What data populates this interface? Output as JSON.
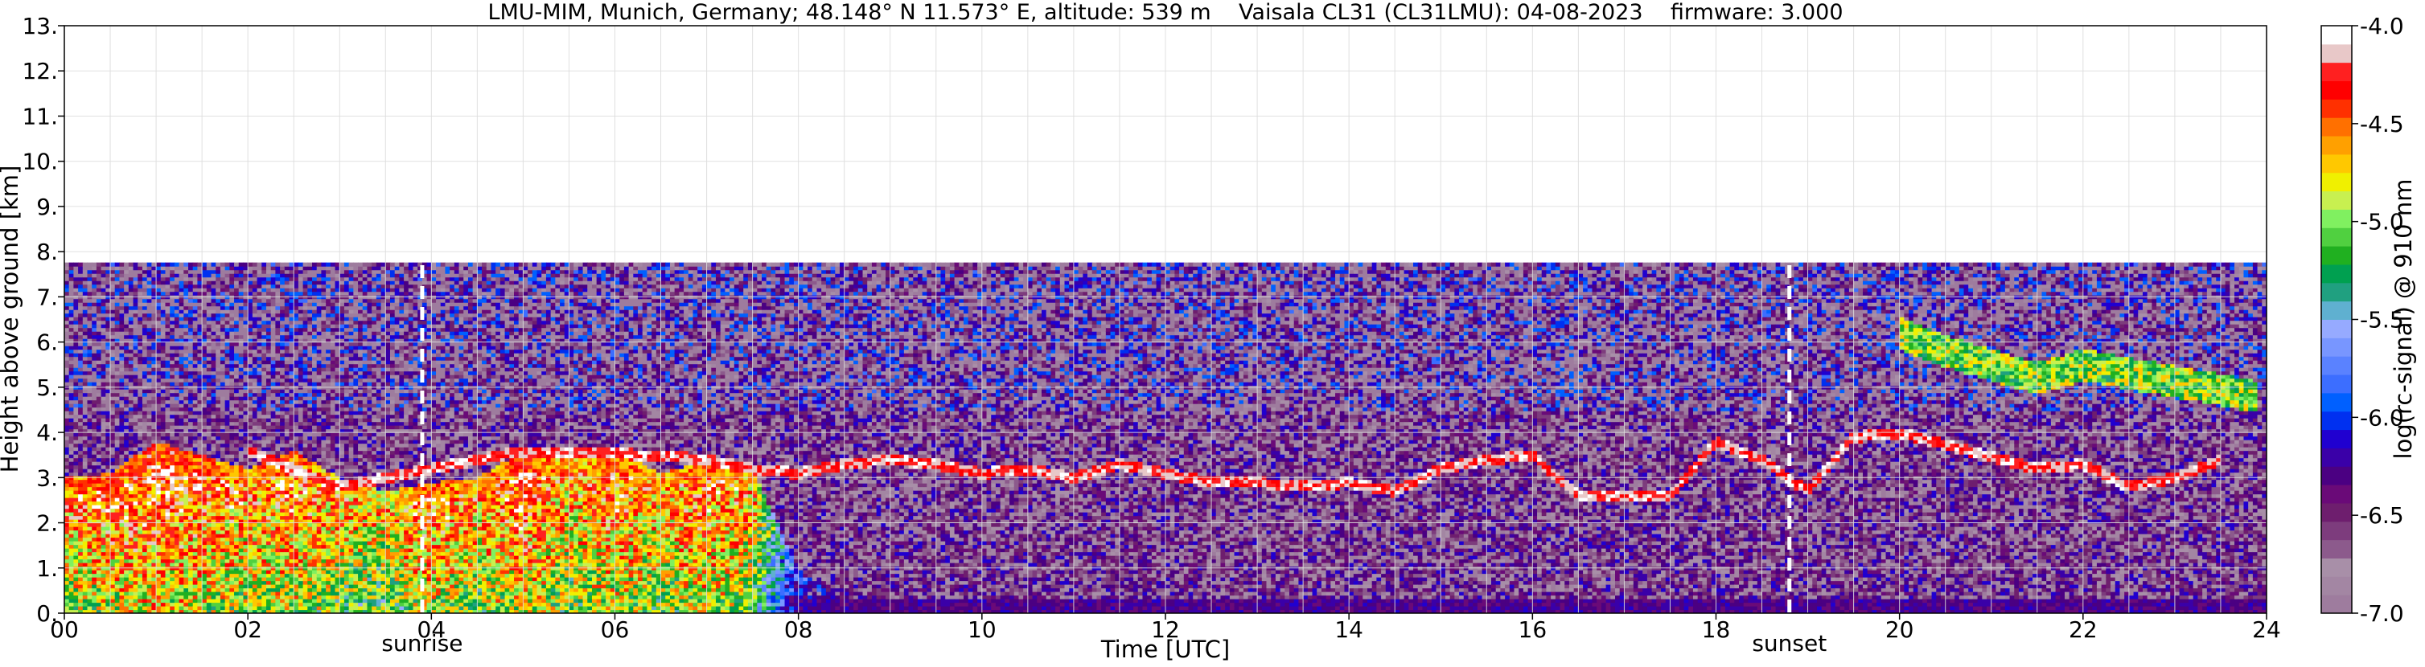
{
  "chart_data": {
    "type": "heatmap",
    "title": "LMU-MIM, Munich, Germany; 48.148° N 11.573° E, altitude: 539 m    Vaisala CL31 (CL31LMU): 04-08-2023    firmware: 3.000",
    "xlabel": "Time [UTC]",
    "ylabel": "Height above ground [km]",
    "xlim": [
      0,
      24
    ],
    "ylim": [
      0,
      13
    ],
    "x_ticks": [
      {
        "value": 0,
        "label": "00"
      },
      {
        "value": 2,
        "label": "02"
      },
      {
        "value": 4,
        "label": "04"
      },
      {
        "value": 6,
        "label": "06"
      },
      {
        "value": 8,
        "label": "08"
      },
      {
        "value": 10,
        "label": "10"
      },
      {
        "value": 12,
        "label": "12"
      },
      {
        "value": 14,
        "label": "14"
      },
      {
        "value": 16,
        "label": "16"
      },
      {
        "value": 18,
        "label": "18"
      },
      {
        "value": 20,
        "label": "20"
      },
      {
        "value": 22,
        "label": "22"
      },
      {
        "value": 24,
        "label": "24"
      }
    ],
    "y_ticks": [
      {
        "value": 0,
        "label": "0."
      },
      {
        "value": 1,
        "label": "1."
      },
      {
        "value": 2,
        "label": "2."
      },
      {
        "value": 3,
        "label": "3."
      },
      {
        "value": 4,
        "label": "4."
      },
      {
        "value": 5,
        "label": "5."
      },
      {
        "value": 6,
        "label": "6."
      },
      {
        "value": 7,
        "label": "7."
      },
      {
        "value": 8,
        "label": "8."
      },
      {
        "value": 9,
        "label": "9."
      },
      {
        "value": 10,
        "label": "10."
      },
      {
        "value": 11,
        "label": "11."
      },
      {
        "value": 12,
        "label": "12."
      },
      {
        "value": 13,
        "label": "13."
      }
    ],
    "annotations": [
      {
        "label": "sunrise",
        "x": 3.9
      },
      {
        "label": "sunset",
        "x": 18.8
      }
    ],
    "grid": true,
    "data_top_km": 7.7,
    "colorbar": {
      "label": "log(rc-signal) @ 910 nm",
      "range": [
        -7.0,
        -4.0
      ],
      "ticks": [
        {
          "value": -7.0,
          "label": "-7.0"
        },
        {
          "value": -6.5,
          "label": "-6.5"
        },
        {
          "value": -6.0,
          "label": "-6.0"
        },
        {
          "value": -5.5,
          "label": "-5.5"
        },
        {
          "value": -5.0,
          "label": "-5.0"
        },
        {
          "value": -4.5,
          "label": "-4.5"
        },
        {
          "value": -4.0,
          "label": "-4.0"
        }
      ],
      "colors": [
        "#9e7c9e",
        "#a386a3",
        "#a88fa8",
        "#8c5a8c",
        "#7d3c7d",
        "#6e1e6e",
        "#6a0a78",
        "#4b0082",
        "#3a00a8",
        "#2000d0",
        "#0030f0",
        "#0060ff",
        "#3c6eff",
        "#5a82ff",
        "#7896ff",
        "#96aaff",
        "#5fb0d0",
        "#20a080",
        "#00a050",
        "#20b020",
        "#50d040",
        "#80f060",
        "#c8f050",
        "#f0f000",
        "#ffc800",
        "#ffa000",
        "#ff7000",
        "#ff3000",
        "#ff0000",
        "#ff2020",
        "#e8c8c8",
        "#ffffff"
      ]
    },
    "layers": [
      {
        "name": "boundary layer aerosol / cloud",
        "points": [
          {
            "x": 0.0,
            "base": 0.0,
            "top": 3.0,
            "peak": -4.4
          },
          {
            "x": 0.5,
            "base": 0.0,
            "top": 3.1,
            "peak": -4.3
          },
          {
            "x": 1.0,
            "base": 0.0,
            "top": 3.8,
            "peak": -4.2
          },
          {
            "x": 1.5,
            "base": 0.0,
            "top": 3.5,
            "peak": -4.3
          },
          {
            "x": 2.0,
            "base": 0.0,
            "top": 3.2,
            "peak": -4.4
          },
          {
            "x": 2.5,
            "base": 0.0,
            "top": 3.6,
            "peak": -4.3
          },
          {
            "x": 3.0,
            "base": 0.0,
            "top": 3.0,
            "peak": -4.5
          },
          {
            "x": 3.5,
            "base": 0.0,
            "top": 2.7,
            "peak": -4.6
          },
          {
            "x": 4.0,
            "base": 0.0,
            "top": 2.9,
            "peak": -4.3
          },
          {
            "x": 4.5,
            "base": 0.0,
            "top": 3.0,
            "peak": -4.5
          },
          {
            "x": 5.0,
            "base": 0.0,
            "top": 3.6,
            "peak": -4.2
          },
          {
            "x": 5.5,
            "base": 0.0,
            "top": 3.5,
            "peak": -4.5
          },
          {
            "x": 6.0,
            "base": 0.0,
            "top": 3.6,
            "peak": -4.3
          },
          {
            "x": 6.5,
            "base": 0.0,
            "top": 3.1,
            "peak": -4.5
          },
          {
            "x": 7.0,
            "base": 0.0,
            "top": 3.4,
            "peak": -4.3
          },
          {
            "x": 7.5,
            "base": 0.0,
            "top": 3.2,
            "peak": -4.5
          },
          {
            "x": 8.0,
            "base": 0.0,
            "top": 1.0,
            "peak": -5.9
          },
          {
            "x": 8.5,
            "base": 0.0,
            "top": 0.3,
            "peak": -6.4
          }
        ]
      },
      {
        "name": "elevated cloud layer",
        "points": [
          {
            "x": 2.0,
            "y": 3.6
          },
          {
            "x": 2.5,
            "y": 3.2
          },
          {
            "x": 3.0,
            "y": 2.8
          },
          {
            "x": 5.0,
            "y": 3.6
          },
          {
            "x": 6.5,
            "y": 3.5
          },
          {
            "x": 7.0,
            "y": 3.4
          },
          {
            "x": 7.5,
            "y": 3.2
          },
          {
            "x": 8.0,
            "y": 3.1
          },
          {
            "x": 8.5,
            "y": 3.3
          },
          {
            "x": 9.0,
            "y": 3.4
          },
          {
            "x": 9.5,
            "y": 3.3
          },
          {
            "x": 10.0,
            "y": 3.1
          },
          {
            "x": 10.5,
            "y": 3.2
          },
          {
            "x": 11.0,
            "y": 3.0
          },
          {
            "x": 11.5,
            "y": 3.3
          },
          {
            "x": 12.0,
            "y": 3.1
          },
          {
            "x": 12.5,
            "y": 2.9
          },
          {
            "x": 13.0,
            "y": 2.9
          },
          {
            "x": 13.5,
            "y": 2.8
          },
          {
            "x": 14.0,
            "y": 2.9
          },
          {
            "x": 14.5,
            "y": 2.7
          },
          {
            "x": 15.0,
            "y": 3.2
          },
          {
            "x": 15.5,
            "y": 3.4
          },
          {
            "x": 16.0,
            "y": 3.5
          },
          {
            "x": 16.5,
            "y": 2.6
          },
          {
            "x": 17.0,
            "y": 2.6
          },
          {
            "x": 17.5,
            "y": 2.6
          },
          {
            "x": 18.0,
            "y": 3.8
          },
          {
            "x": 18.5,
            "y": 3.4
          },
          {
            "x": 19.0,
            "y": 2.7
          },
          {
            "x": 19.5,
            "y": 3.9
          },
          {
            "x": 20.0,
            "y": 4.0
          },
          {
            "x": 21.5,
            "y": 3.2
          },
          {
            "x": 22.0,
            "y": 3.3
          },
          {
            "x": 22.5,
            "y": 2.8
          },
          {
            "x": 23.0,
            "y": 3.0
          },
          {
            "x": 23.5,
            "y": 3.4
          }
        ]
      },
      {
        "name": "upper cloud layer",
        "points": [
          {
            "x": 20.0,
            "y": 6.2
          },
          {
            "x": 20.5,
            "y": 5.8
          },
          {
            "x": 21.0,
            "y": 5.5
          },
          {
            "x": 21.5,
            "y": 5.2
          },
          {
            "x": 22.0,
            "y": 5.5
          },
          {
            "x": 23.9,
            "y": 4.8
          }
        ]
      }
    ]
  }
}
